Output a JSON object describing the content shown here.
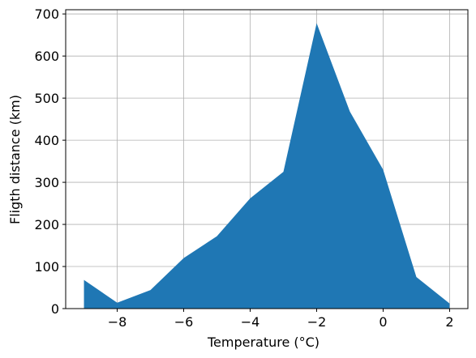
{
  "chart_data": {
    "type": "area",
    "xlabel": "Temperature (°C)",
    "ylabel": "Fligth distance (km)",
    "x": [
      -9,
      -8,
      -7,
      -6,
      -5,
      -4,
      -3,
      -2,
      -1,
      0,
      1,
      2
    ],
    "series": [
      {
        "values": [
          68,
          14,
          44,
          120,
          172,
          262,
          325,
          678,
          468,
          330,
          75,
          12
        ]
      }
    ],
    "xlim": [
      -9.55,
      2.55
    ],
    "ylim": [
      0,
      710
    ],
    "xticks": [
      -8,
      -6,
      -4,
      -2,
      0,
      2
    ],
    "xtick_labels": [
      "−8",
      "−6",
      "−4",
      "−2",
      "0",
      "2"
    ],
    "yticks": [
      0,
      100,
      200,
      300,
      400,
      500,
      600,
      700
    ],
    "ytick_labels": [
      "0",
      "100",
      "200",
      "300",
      "400",
      "500",
      "600",
      "700"
    ],
    "grid": true,
    "colors": {
      "fill": "#1f77b4",
      "grid": "#b0b0b0",
      "axis": "#000000"
    }
  }
}
